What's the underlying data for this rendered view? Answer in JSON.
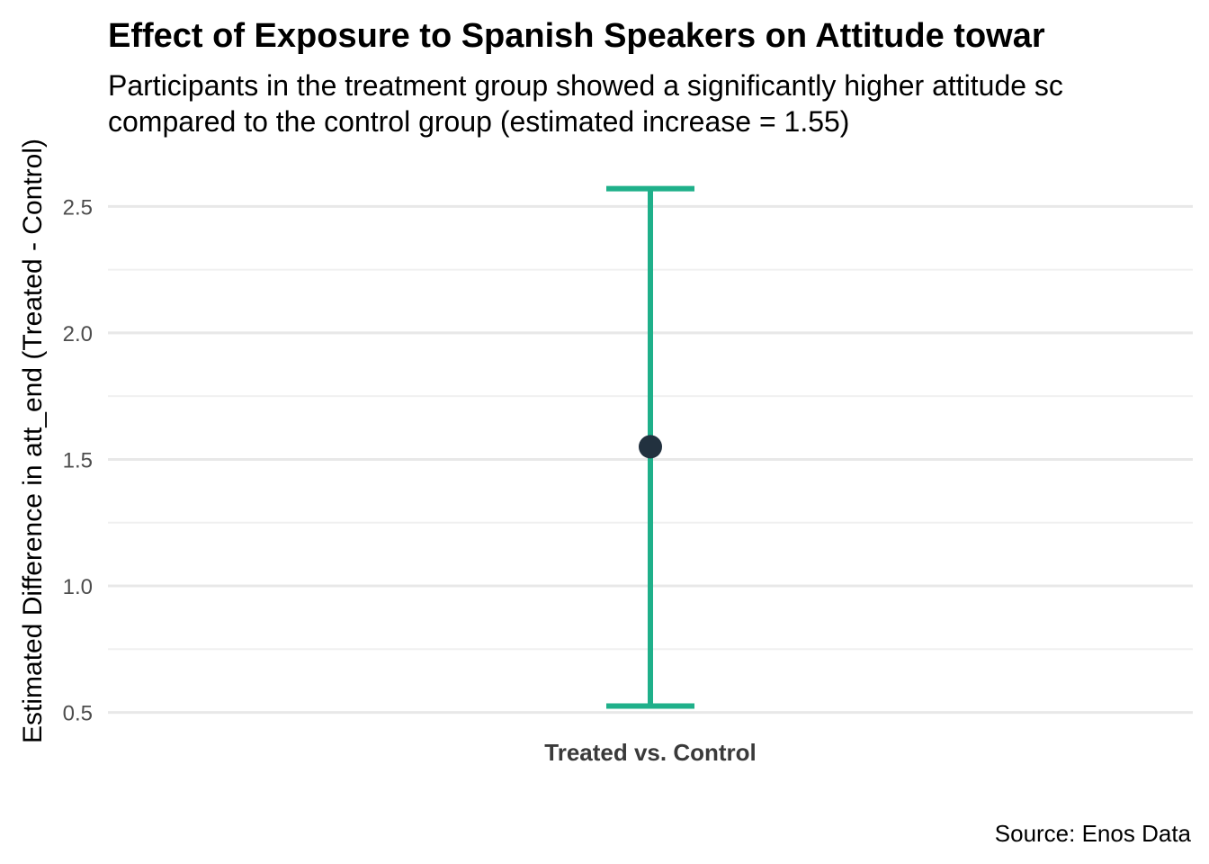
{
  "chart_data": {
    "type": "errorbar",
    "title": "Effect of Exposure to Spanish Speakers on Attitude towar",
    "subtitle_lines": [
      "Participants in the treatment group showed a significantly higher attitude sc",
      "compared to the control group (estimated increase = 1.55)"
    ],
    "ylabel": "Estimated Difference in att_end (Treated - Control)",
    "xlabel": "",
    "caption": "Source: Enos Data",
    "categories": [
      "Treated vs. Control"
    ],
    "estimate": [
      1.55
    ],
    "ci_low": [
      0.525
    ],
    "ci_high": [
      2.57
    ],
    "ylim": [
      0.47,
      2.64
    ],
    "y_major_ticks": [
      0.5,
      1.0,
      1.5,
      2.0,
      2.5
    ],
    "y_tick_labels": [
      "0.5",
      "1.0",
      "1.5",
      "2.0",
      "2.5"
    ],
    "y_minor_ticks": [
      0.75,
      1.25,
      1.75,
      2.25
    ],
    "grid": true,
    "colors": {
      "errorbar": "#1fb08a",
      "point": "#22313f"
    }
  }
}
